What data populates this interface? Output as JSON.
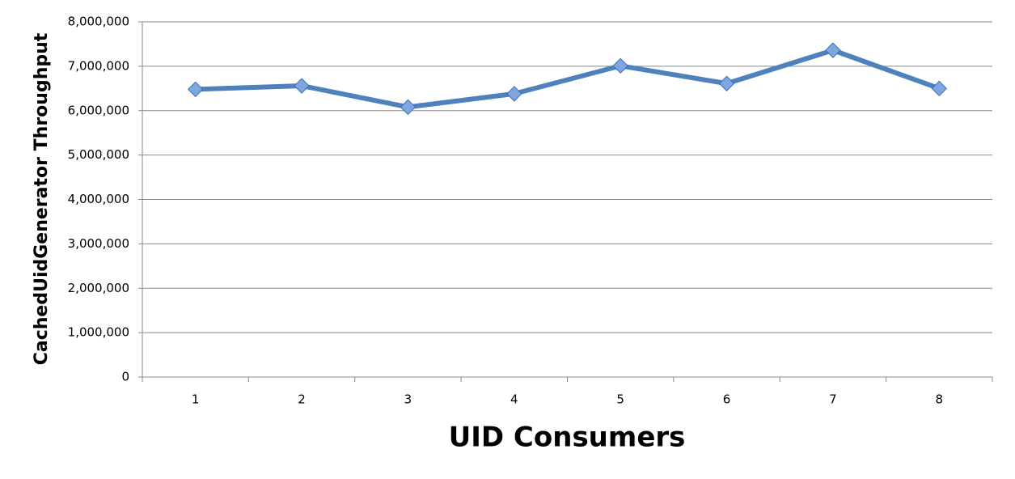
{
  "chart_data": {
    "type": "line",
    "x_label": "UID Consumers",
    "y_label": "CachedUidGenerator Throughput",
    "categories": [
      "1",
      "2",
      "3",
      "4",
      "5",
      "6",
      "7",
      "8"
    ],
    "series": [
      {
        "name": "CachedUidGenerator Throughput",
        "color": "#4f81bd",
        "values": [
          6480000,
          6560000,
          6080000,
          6380000,
          7010000,
          6610000,
          7360000,
          6500000
        ]
      }
    ],
    "ylim": [
      0,
      8000000
    ],
    "yticks": [
      0,
      {
        "value": 1000000,
        "label": "1,000,000"
      },
      {
        "value": 2000000,
        "label": "2,000,000"
      },
      {
        "value": 3000000,
        "label": "3,000,000"
      },
      {
        "value": 4000000,
        "label": "4,000,000"
      },
      {
        "value": 5000000,
        "label": "5,000,000"
      },
      {
        "value": 6000000,
        "label": "6,000,000"
      },
      {
        "value": 7000000,
        "label": "7,000,000"
      },
      {
        "value": 8000000,
        "label": "8,000,000"
      }
    ],
    "grid": true
  }
}
